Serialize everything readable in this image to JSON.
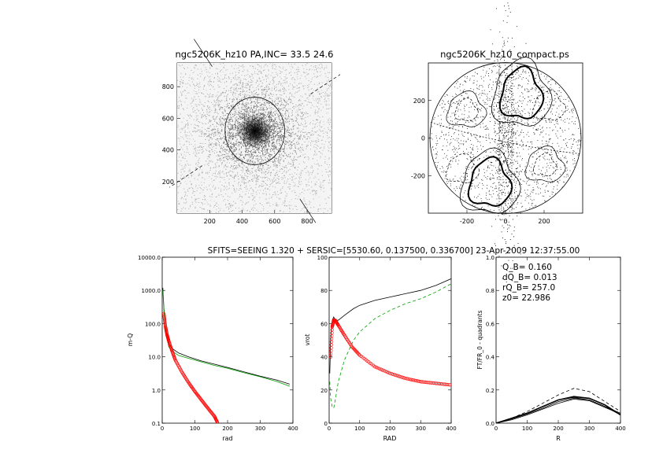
{
  "header": {
    "caption": "SFITS=SEEING 1.320 + SERSIC=[5530.60, 0.137500, 0.336700]  23-Apr-2009 12:37:55.00"
  },
  "chart_data": [
    {
      "type": "image",
      "title": "ngc5206K_hz10 PA,INC= 33.5 24.6",
      "xticks": [
        "200",
        "400",
        "600",
        "800"
      ],
      "yticks": [
        "200",
        "400",
        "600",
        "800"
      ],
      "xlim": [
        0,
        950
      ],
      "ylim": [
        0,
        950
      ],
      "ellipse": {
        "cx": 478,
        "cy": 520,
        "a": 370,
        "b": 305,
        "pa": 33.5
      },
      "core": {
        "x": 478,
        "y": 520
      }
    },
    {
      "type": "contour",
      "title": "ngc5206K_hz10_compact.ps",
      "xticks": [
        "-200",
        "0",
        "200"
      ],
      "yticks": [
        "-200",
        "0",
        "200"
      ],
      "xlim": [
        -400,
        400
      ],
      "ylim": [
        -400,
        400
      ]
    },
    {
      "type": "line",
      "xlabel": "rad",
      "ylabel": "m-Q",
      "yscale": "log",
      "xlim": [
        0,
        400
      ],
      "ylim": [
        0.1,
        10000
      ],
      "xticks": [
        "0",
        "100",
        "200",
        "300",
        "400"
      ],
      "yticks": [
        "10000.0",
        "1000.0",
        "100.0",
        "10.0",
        "1.0",
        "0.1"
      ],
      "series": [
        {
          "color": "#000000",
          "x": [
            2,
            5,
            10,
            15,
            20,
            30,
            50,
            80,
            120,
            160,
            200,
            250,
            300,
            350,
            390
          ],
          "y": [
            1200,
            300,
            80,
            40,
            25,
            18,
            13,
            10,
            7.5,
            6,
            4.8,
            3.5,
            2.6,
            2.0,
            1.5
          ]
        },
        {
          "color": "#00a000",
          "x": [
            2,
            5,
            10,
            15,
            20,
            30,
            50,
            80,
            120,
            160,
            200,
            250,
            300,
            350,
            390
          ],
          "y": [
            1000,
            250,
            70,
            35,
            20,
            15,
            11,
            9,
            7,
            5.5,
            4.5,
            3.3,
            2.5,
            1.8,
            1.3
          ]
        },
        {
          "color": "#ff0000",
          "marker": "circle",
          "x": [
            5,
            10,
            15,
            20,
            30,
            40,
            60,
            80,
            100,
            120,
            140,
            160,
            170
          ],
          "y": [
            200,
            80,
            45,
            30,
            15,
            8,
            3.5,
            1.7,
            0.9,
            0.5,
            0.28,
            0.16,
            0.1
          ]
        }
      ]
    },
    {
      "type": "line",
      "xlabel": "RAD",
      "ylabel": "vrot",
      "xlim": [
        0,
        400
      ],
      "ylim": [
        0,
        100
      ],
      "xticks": [
        "0",
        "100",
        "200",
        "300",
        "400"
      ],
      "yticks": [
        "0",
        "20",
        "40",
        "60",
        "80",
        "100"
      ],
      "series": [
        {
          "color": "#000000",
          "x": [
            2,
            5,
            10,
            15,
            20,
            30,
            50,
            80,
            100,
            150,
            200,
            250,
            300,
            350,
            400
          ],
          "y": [
            30,
            50,
            62,
            64,
            62,
            62,
            65,
            69,
            71,
            74,
            76,
            78,
            80,
            83,
            87
          ]
        },
        {
          "color": "#00a000",
          "dash": true,
          "x": [
            2,
            5,
            10,
            15,
            20,
            30,
            50,
            80,
            100,
            150,
            200,
            250,
            300,
            350,
            400
          ],
          "y": [
            25,
            15,
            10,
            9,
            14,
            25,
            38,
            50,
            55,
            63,
            68,
            72,
            75,
            79,
            84
          ]
        },
        {
          "color": "#ff0000",
          "marker": "circle",
          "x": [
            5,
            10,
            15,
            20,
            30,
            50,
            75,
            100,
            150,
            200,
            250,
            300,
            350,
            400
          ],
          "y": [
            40,
            58,
            62,
            62,
            59,
            53,
            46,
            41,
            34,
            30,
            27,
            25,
            24,
            23
          ]
        }
      ]
    },
    {
      "type": "line",
      "xlabel": "R",
      "ylabel": "FT/FR_0 - quadrants",
      "xlim": [
        0,
        400
      ],
      "ylim": [
        0,
        1
      ],
      "xticks": [
        "0",
        "100",
        "200",
        "300",
        "400"
      ],
      "yticks": [
        "0.0",
        "0.2",
        "0.4",
        "0.6",
        "0.8",
        "1.0"
      ],
      "annotations": [
        "Q_B=  0.160",
        "dQ_B=  0.013",
        "rQ_B=  257.0",
        "z0= 22.986"
      ],
      "series": [
        {
          "color": "#000000",
          "dash": true,
          "x": [
            0,
            50,
            100,
            150,
            200,
            250,
            300,
            350,
            400
          ],
          "y": [
            0,
            0.03,
            0.07,
            0.12,
            0.17,
            0.21,
            0.19,
            0.13,
            0.07
          ]
        },
        {
          "color": "#000000",
          "bold": true,
          "x": [
            0,
            50,
            100,
            150,
            200,
            250,
            300,
            350,
            400
          ],
          "y": [
            0,
            0.03,
            0.06,
            0.1,
            0.14,
            0.16,
            0.15,
            0.11,
            0.05
          ]
        },
        {
          "color": "#000000",
          "x": [
            0,
            50,
            100,
            150,
            200,
            250,
            300,
            350,
            400
          ],
          "y": [
            0,
            0.025,
            0.055,
            0.09,
            0.13,
            0.15,
            0.14,
            0.1,
            0.06
          ]
        },
        {
          "color": "#000000",
          "x": [
            0,
            50,
            100,
            150,
            200,
            250,
            300,
            350,
            400
          ],
          "y": [
            0,
            0.02,
            0.05,
            0.085,
            0.12,
            0.145,
            0.135,
            0.095,
            0.055
          ]
        },
        {
          "color": "#000000",
          "x": [
            0,
            50,
            100,
            150,
            200,
            250,
            300,
            350,
            400
          ],
          "y": [
            0,
            0.03,
            0.06,
            0.1,
            0.14,
            0.155,
            0.14,
            0.1,
            0.05
          ]
        }
      ]
    }
  ]
}
